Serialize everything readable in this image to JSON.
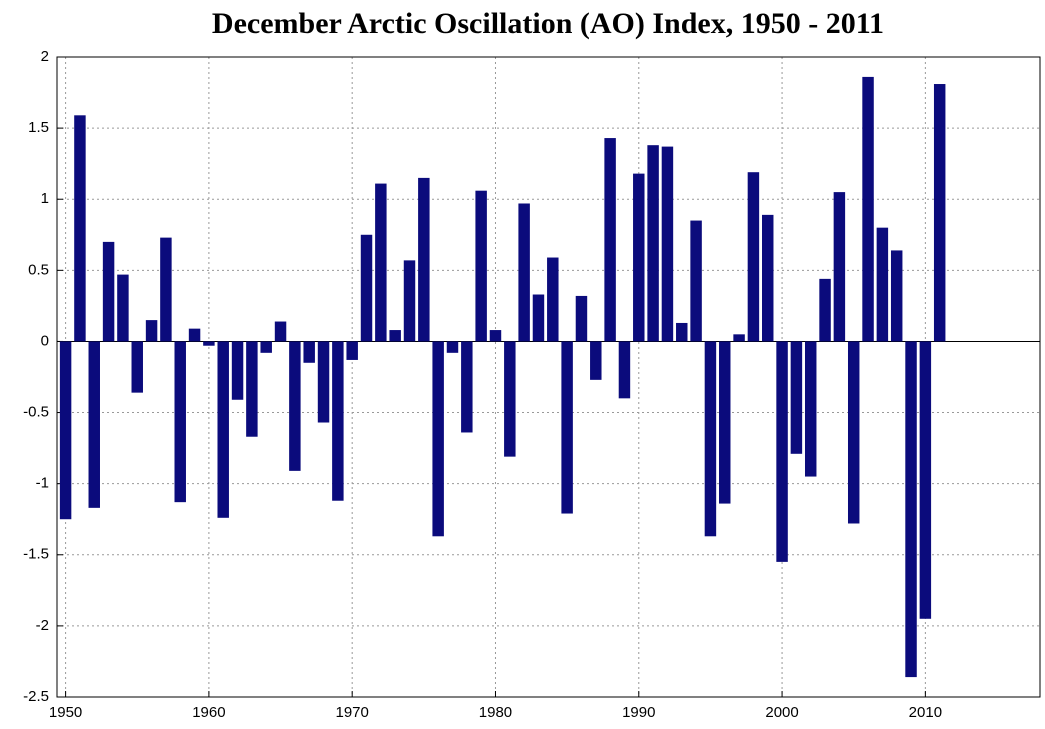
{
  "chart_data": {
    "type": "bar",
    "title": "December Arctic Oscillation (AO) Index, 1950 - 2011",
    "x": [
      1950,
      1951,
      1952,
      1953,
      1954,
      1955,
      1956,
      1957,
      1958,
      1959,
      1960,
      1961,
      1962,
      1963,
      1964,
      1965,
      1966,
      1967,
      1968,
      1969,
      1970,
      1971,
      1972,
      1973,
      1974,
      1975,
      1976,
      1977,
      1978,
      1979,
      1980,
      1981,
      1982,
      1983,
      1984,
      1985,
      1986,
      1987,
      1988,
      1989,
      1990,
      1991,
      1992,
      1993,
      1994,
      1995,
      1996,
      1997,
      1998,
      1999,
      2000,
      2001,
      2002,
      2003,
      2004,
      2005,
      2006,
      2007,
      2008,
      2009,
      2010,
      2011
    ],
    "values": [
      -1.25,
      1.59,
      -1.17,
      0.7,
      0.47,
      -0.36,
      0.15,
      0.73,
      -1.13,
      0.09,
      -0.03,
      -1.24,
      -0.41,
      -0.67,
      -0.08,
      0.14,
      -0.91,
      -0.15,
      -0.57,
      -1.12,
      -0.13,
      0.75,
      1.11,
      0.08,
      0.57,
      1.15,
      -1.37,
      -0.08,
      -0.64,
      1.06,
      0.08,
      -0.81,
      0.97,
      0.33,
      0.59,
      -1.21,
      0.32,
      -0.27,
      1.43,
      -0.4,
      1.18,
      1.38,
      1.37,
      0.13,
      0.85,
      -1.37,
      -1.14,
      0.05,
      1.19,
      0.89,
      -1.55,
      -0.79,
      -0.95,
      0.44,
      1.05,
      -1.28,
      1.86,
      0.8,
      0.64,
      -2.36,
      -1.95,
      1.81
    ],
    "color": "#0b0b7c",
    "xlim": [
      1949.4,
      2018
    ],
    "xticks": [
      1950,
      1960,
      1970,
      1980,
      1990,
      2000,
      2010
    ],
    "ylim": [
      -2.5,
      2
    ],
    "yticks": [
      2,
      1.5,
      1,
      0.5,
      0,
      -0.5,
      -1,
      -1.5,
      -2,
      -2.5
    ],
    "grid": true
  }
}
